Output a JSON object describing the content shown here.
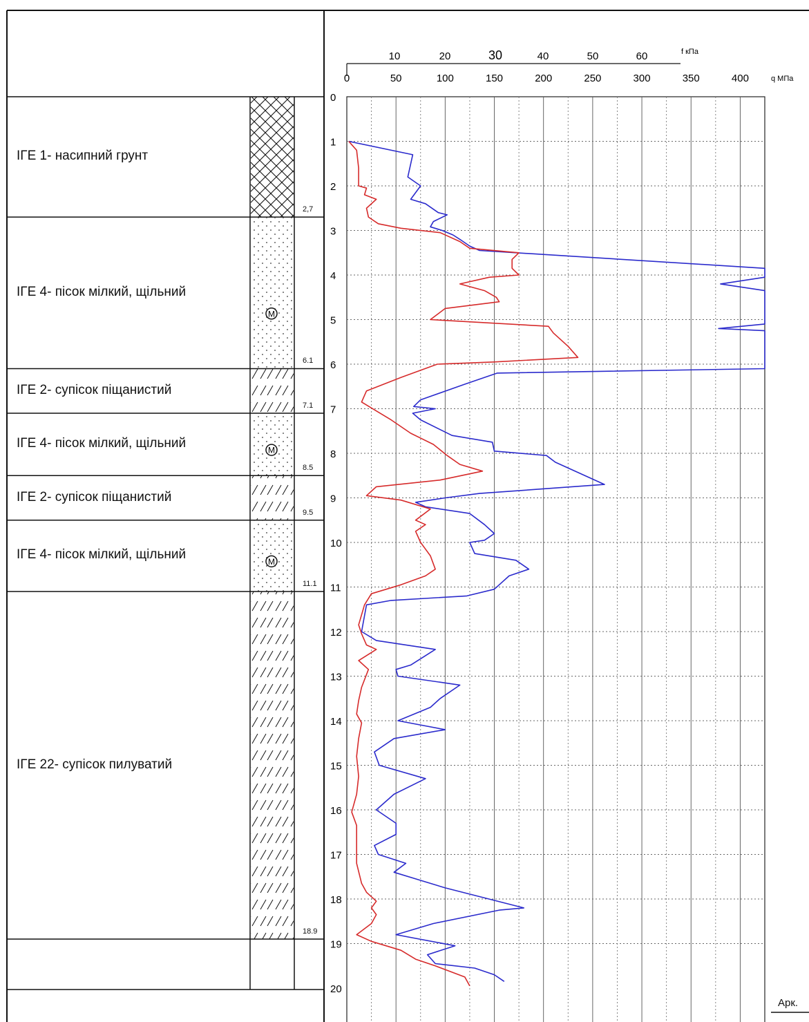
{
  "chart_data": {
    "type": "line",
    "top_axis_f": {
      "unit_label": "f кПа",
      "ticks": [
        "10",
        "20",
        "30",
        "40",
        "50",
        "60"
      ]
    },
    "top_axis_q": {
      "unit_label": "q МПа",
      "ticks": [
        "0",
        "50",
        "100",
        "150",
        "200",
        "250",
        "300",
        "350",
        "400"
      ]
    },
    "depth_axis": {
      "ticks": [
        "0",
        "1",
        "2",
        "3",
        "4",
        "5",
        "6",
        "7",
        "8",
        "9",
        "10",
        "11",
        "12",
        "13",
        "14",
        "15",
        "16",
        "17",
        "18",
        "19",
        "20"
      ],
      "range": [
        0,
        20
      ]
    },
    "q_range": [
      0,
      425
    ],
    "series": [
      {
        "axis": "q",
        "color": "#2a2acc",
        "points": [
          [
            2,
            1.0
          ],
          [
            67,
            1.3
          ],
          [
            62,
            1.8
          ],
          [
            75,
            2.0
          ],
          [
            65,
            2.3
          ],
          [
            80,
            2.4
          ],
          [
            93,
            2.6
          ],
          [
            102,
            2.65
          ],
          [
            88,
            2.8
          ],
          [
            85,
            2.92
          ],
          [
            97,
            3.0
          ],
          [
            108,
            3.1
          ],
          [
            115,
            3.2
          ],
          [
            125,
            3.35
          ],
          [
            135,
            3.45
          ],
          [
            425,
            3.85
          ],
          [
            425,
            4.05
          ],
          [
            380,
            4.2
          ],
          [
            425,
            4.35
          ],
          [
            425,
            5.1
          ],
          [
            378,
            5.2
          ],
          [
            425,
            5.25
          ],
          [
            425,
            6.1
          ],
          [
            153,
            6.2
          ],
          [
            120,
            6.45
          ],
          [
            75,
            6.8
          ],
          [
            68,
            6.95
          ],
          [
            90,
            7.0
          ],
          [
            67,
            7.1
          ],
          [
            75,
            7.25
          ],
          [
            107,
            7.6
          ],
          [
            148,
            7.75
          ],
          [
            150,
            7.95
          ],
          [
            203,
            8.05
          ],
          [
            212,
            8.2
          ],
          [
            262,
            8.7
          ],
          [
            135,
            8.9
          ],
          [
            100,
            9.0
          ],
          [
            70,
            9.1
          ],
          [
            80,
            9.2
          ],
          [
            125,
            9.35
          ],
          [
            140,
            9.6
          ],
          [
            150,
            9.8
          ],
          [
            140,
            9.95
          ],
          [
            125,
            10.0
          ],
          [
            130,
            10.25
          ],
          [
            172,
            10.4
          ],
          [
            185,
            10.6
          ],
          [
            165,
            10.75
          ],
          [
            155,
            10.95
          ],
          [
            150,
            11.05
          ],
          [
            122,
            11.2
          ],
          [
            45,
            11.3
          ],
          [
            20,
            11.4
          ],
          [
            15,
            12.0
          ],
          [
            30,
            12.2
          ],
          [
            90,
            12.4
          ],
          [
            65,
            12.75
          ],
          [
            50,
            12.85
          ],
          [
            52,
            13.0
          ],
          [
            115,
            13.2
          ],
          [
            95,
            13.5
          ],
          [
            85,
            13.7
          ],
          [
            52,
            14.0
          ],
          [
            100,
            14.2
          ],
          [
            48,
            14.4
          ],
          [
            28,
            14.7
          ],
          [
            33,
            15.0
          ],
          [
            80,
            15.3
          ],
          [
            48,
            15.65
          ],
          [
            30,
            16.0
          ],
          [
            50,
            16.3
          ],
          [
            50,
            16.55
          ],
          [
            28,
            16.8
          ],
          [
            32,
            17.0
          ],
          [
            60,
            17.2
          ],
          [
            48,
            17.4
          ],
          [
            100,
            17.75
          ],
          [
            180,
            18.2
          ],
          [
            155,
            18.25
          ],
          [
            88,
            18.55
          ],
          [
            50,
            18.8
          ],
          [
            110,
            19.05
          ],
          [
            82,
            19.25
          ],
          [
            90,
            19.45
          ],
          [
            130,
            19.55
          ],
          [
            150,
            19.7
          ],
          [
            160,
            19.85
          ]
        ]
      },
      {
        "axis": "q",
        "color": "#d62a2a",
        "points": [
          [
            2,
            1.0
          ],
          [
            10,
            1.2
          ],
          [
            12,
            1.6
          ],
          [
            12,
            2.0
          ],
          [
            20,
            2.05
          ],
          [
            18,
            2.2
          ],
          [
            30,
            2.3
          ],
          [
            20,
            2.5
          ],
          [
            22,
            2.7
          ],
          [
            32,
            2.85
          ],
          [
            55,
            2.95
          ],
          [
            95,
            3.05
          ],
          [
            115,
            3.25
          ],
          [
            125,
            3.4
          ],
          [
            175,
            3.5
          ],
          [
            168,
            3.65
          ],
          [
            168,
            3.85
          ],
          [
            175,
            4.0
          ],
          [
            145,
            4.05
          ],
          [
            115,
            4.2
          ],
          [
            140,
            4.35
          ],
          [
            152,
            4.5
          ],
          [
            155,
            4.6
          ],
          [
            100,
            4.75
          ],
          [
            85,
            5.0
          ],
          [
            205,
            5.15
          ],
          [
            210,
            5.3
          ],
          [
            225,
            5.6
          ],
          [
            235,
            5.85
          ],
          [
            150,
            5.95
          ],
          [
            92,
            6.0
          ],
          [
            55,
            6.3
          ],
          [
            20,
            6.6
          ],
          [
            15,
            6.85
          ],
          [
            30,
            7.05
          ],
          [
            45,
            7.25
          ],
          [
            65,
            7.55
          ],
          [
            88,
            7.8
          ],
          [
            102,
            8.05
          ],
          [
            115,
            8.25
          ],
          [
            138,
            8.4
          ],
          [
            95,
            8.6
          ],
          [
            30,
            8.75
          ],
          [
            20,
            8.95
          ],
          [
            55,
            9.05
          ],
          [
            85,
            9.25
          ],
          [
            70,
            9.5
          ],
          [
            80,
            9.6
          ],
          [
            70,
            9.75
          ],
          [
            75,
            10.0
          ],
          [
            80,
            10.15
          ],
          [
            85,
            10.3
          ],
          [
            90,
            10.6
          ],
          [
            80,
            10.75
          ],
          [
            55,
            10.95
          ],
          [
            25,
            11.15
          ],
          [
            18,
            11.4
          ],
          [
            12,
            11.85
          ],
          [
            15,
            12.05
          ],
          [
            20,
            12.3
          ],
          [
            30,
            12.4
          ],
          [
            12,
            12.65
          ],
          [
            22,
            12.85
          ],
          [
            15,
            13.25
          ],
          [
            12,
            13.55
          ],
          [
            10,
            13.85
          ],
          [
            15,
            14.05
          ],
          [
            12,
            14.4
          ],
          [
            10,
            14.8
          ],
          [
            12,
            15.25
          ],
          [
            10,
            15.65
          ],
          [
            5,
            16.05
          ],
          [
            10,
            16.35
          ],
          [
            10,
            16.75
          ],
          [
            10,
            17.2
          ],
          [
            15,
            17.65
          ],
          [
            20,
            17.85
          ],
          [
            30,
            18.05
          ],
          [
            25,
            18.2
          ],
          [
            30,
            18.35
          ],
          [
            25,
            18.55
          ],
          [
            10,
            18.8
          ],
          [
            25,
            18.95
          ],
          [
            55,
            19.15
          ],
          [
            70,
            19.35
          ],
          [
            90,
            19.5
          ],
          [
            120,
            19.75
          ],
          [
            125,
            19.95
          ]
        ]
      }
    ]
  },
  "layers": [
    {
      "name": "ІГЕ 1- насипний грунт",
      "bottom_label": "2,7",
      "pattern": "crosshatch",
      "symbol": ""
    },
    {
      "name": "ІГЕ 4- пісок мілкий, щільний",
      "bottom_label": "6.1",
      "pattern": "dots",
      "symbol": "М"
    },
    {
      "name": "ІГЕ 2- супісок піщанистий",
      "bottom_label": "7.1",
      "pattern": "slashes",
      "symbol": ""
    },
    {
      "name": "ІГЕ 4- пісок мілкий, щільний",
      "bottom_label": "8.5",
      "pattern": "dots",
      "symbol": "М"
    },
    {
      "name": "ІГЕ 2- супісок піщанистий",
      "bottom_label": "9.5",
      "pattern": "slashes",
      "symbol": ""
    },
    {
      "name": "ІГЕ 4- пісок мілкий, щільний",
      "bottom_label": "11.1",
      "pattern": "dots",
      "symbol": "М"
    },
    {
      "name": "ІГЕ 22- супісок пилуватий",
      "bottom_label": "18.9",
      "pattern": "slashes",
      "symbol": ""
    }
  ],
  "sheet_ref": "Арк.",
  "colors": {
    "q_line": "#2a2acc",
    "f_line": "#d62a2a",
    "grid": "#555555"
  }
}
